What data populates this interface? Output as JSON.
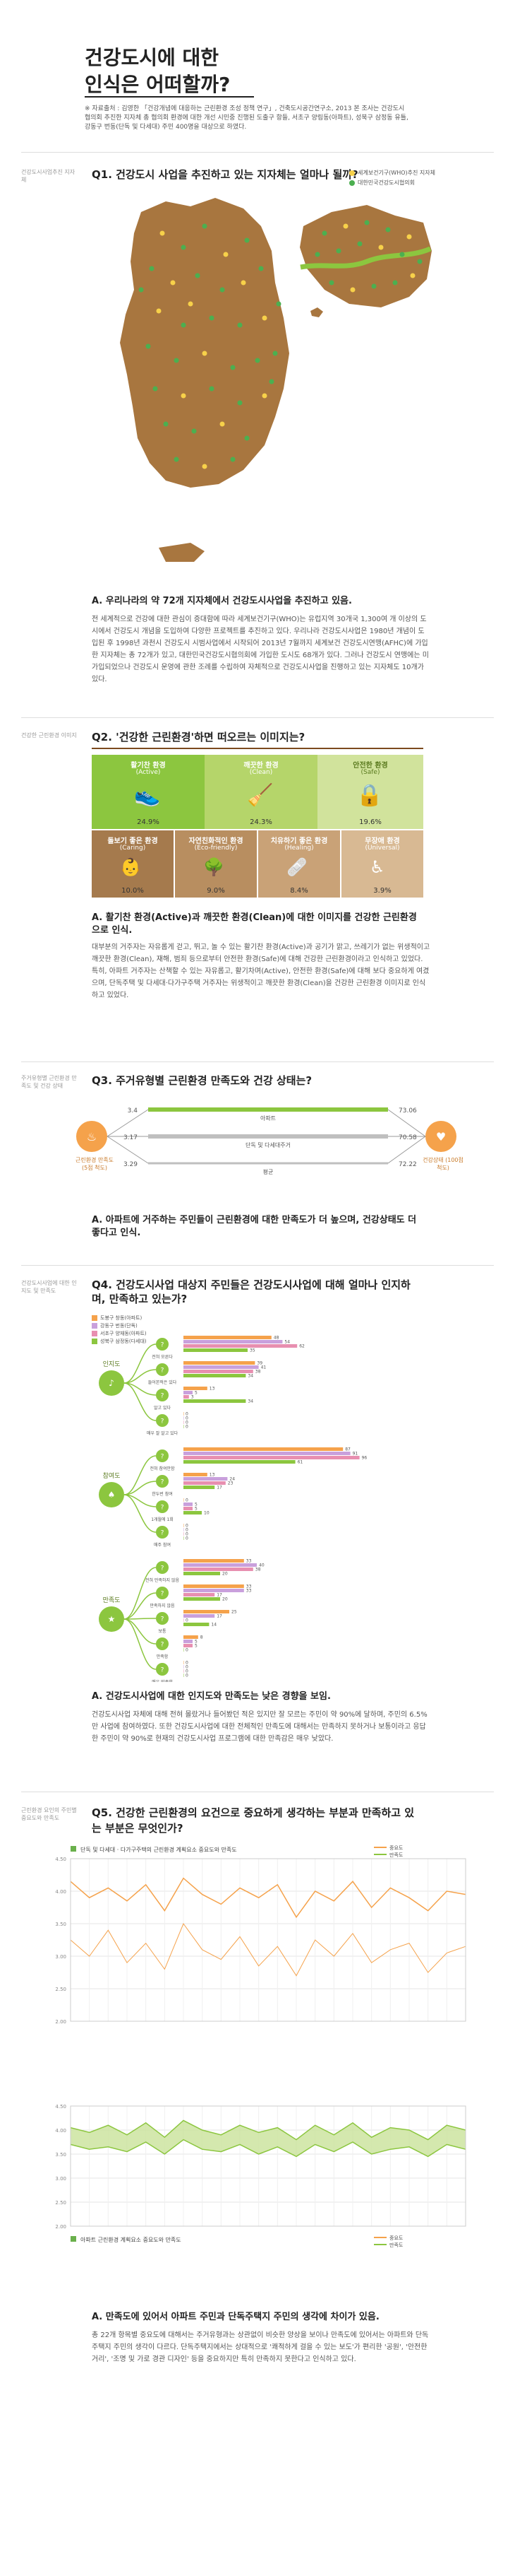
{
  "header": {
    "title_line1": "건강도시에 대한",
    "title_line2": "인식은 어떠할까?",
    "note": "※ 자료출처 : 김영한 「건강개념에 대응하는 근린환경 조성 정책 연구」, 건축도시공간연구소, 2013 본 조사는 건강도시협의회 추진한 지자체 총 협의회 환경에 대한 개선 시민중 진행된 도출구 항들, 서초구 양림동(아파트), 성북구 삼정동 유틀, 강동구 번동(단독 및 다세대) 주민 400명을 대상으로 하였다."
  },
  "q1": {
    "side": "건강도시사업추진 지자체",
    "question": "Q1. 건강도시 사업을 추진하고 있는 지자체는 얼마나 될까?",
    "legend": [
      "세계보건기구(WHO)추진 지자체",
      "대한민국건강도시협의회"
    ],
    "answer_head": "A. 우리나라의 약 72개 지자체에서 건강도시사업을 추진하고 있음.",
    "answer_body": "전 세계적으로 건강에 대한 관심이 증대함에 따라 세계보건기구(WHO)는 유럽지역 30개국 1,300여 개 이상의 도시에서 건강도시 개념을 도입하여 다양한 프로젝트를 추진하고 있다. 우리나라 건강도시사업은 1980년 개념이 도입된 후 1998년 과천시 건강도시 시범사업에서 시작되어 2013년 7월까지 세계보건 건강도시연맹(AFHC)에 가입한 지자체는 총 72개가 있고, 대한민국건강도시협의회에 가입한 도시도 68개가 있다. 그러나 건강도시 연맹에는 미가입되었으나 건강도시 운영에 관한 조례를 수립하여 자체적으로 건강도시사업을 진행하고 있는 지자체도 10개가 있다."
  },
  "q2": {
    "side": "건강한 근린환경 이미지",
    "question": "Q2. '건강한 근린환경'하면 떠오르는 이미지는?",
    "tiles_top": [
      {
        "label": "활기찬 환경",
        "sub": "(Active)",
        "pct": "24.9%",
        "color": "#8cc63f"
      },
      {
        "label": "깨끗한 환경",
        "sub": "(Clean)",
        "pct": "24.3%",
        "color": "#b5d56a"
      },
      {
        "label": "안전한 환경",
        "sub": "(Safe)",
        "pct": "19.6%",
        "color": "#d1e39c"
      }
    ],
    "tiles_bottom": [
      {
        "label": "돌보기 좋은 환경",
        "sub": "(Caring)",
        "pct": "10.0%",
        "color": "#a57a4d"
      },
      {
        "label": "자연친화적인 환경",
        "sub": "(Eco-friendly)",
        "pct": "9.0%",
        "color": "#b88e60"
      },
      {
        "label": "치유하기 좋은 환경",
        "sub": "(Healing)",
        "pct": "8.4%",
        "color": "#c9a277"
      },
      {
        "label": "무장애 환경",
        "sub": "(Universal)",
        "pct": "3.9%",
        "color": "#d8b993"
      }
    ],
    "answer_head": "A. 활기찬 환경(Active)과 깨끗한 환경(Clean)에 대한 이미지를 건강한 근린환경으로 인식.",
    "answer_body": "대부분의 거주자는 자유롭게 걷고, 뛰고, 놀 수 있는 활기찬 환경(Active)과 공기가 맑고, 쓰레기가 없는 위생적이고 깨끗한 환경(Clean), 재해, 범죄 등으로부터 안전한 환경(Safe)에 대해 건강한 근린환경이라고 인식하고 있었다. 특히, 아파트 거주자는 산책할 수 있는 자유롭고, 활기차며(Active), 안전한 환경(Safe)에 대해 보다 중요하게 여겼으며, 단독주택 및 다세대·다가구주택 거주자는 위생적이고 깨끗한 환경(Clean)을 건강한 근린환경 이미지로 인식하고 있었다."
  },
  "q3": {
    "side": "주거유형별 근린환경 만족도 및 건강 상태",
    "question": "Q3. 주거유형별 근린환경 만족도와 건강 상태는?",
    "left_label": "근린환경 만족도 (5점 척도)",
    "right_label": "건강상태 (100점 척도)",
    "rows": [
      {
        "name": "아파트",
        "left": "3.4",
        "right": "73.06"
      },
      {
        "name": "단독 및 다세대주거",
        "left": "3.17",
        "right": "70.58"
      },
      {
        "name": "평균",
        "left": "3.29",
        "right": "72.22"
      }
    ],
    "answer_head": "A. 아파트에 거주하는 주민들이 근린환경에 대한 만족도가 더 높으며, 건강상태도 더 좋다고 인식.",
    "answer_body": ""
  },
  "q4": {
    "side": "건강도시사업에 대한 인지도 및 만족도",
    "question": "Q4. 건강도시사업 대상지 주민들은 건강도시사업에 대해 얼마나 인지하며, 만족하고 있는가?",
    "legend": [
      "도봉구 창동(아파트)",
      "강동구 번동(단독)",
      "서초구 양재동(아파트)",
      "성북구 삼정동(다세대)"
    ],
    "legend_colors": [
      "#f5a24b",
      "#c9a0dc",
      "#e88fb0",
      "#8cc63f"
    ],
    "groups": [
      {
        "name": "인지도",
        "items": [
          {
            "name": "전혀 모른다",
            "values": [
              48,
              54,
              62,
              35
            ]
          },
          {
            "name": "들어본적은 있다",
            "values": [
              39,
              41,
              38,
              34
            ]
          },
          {
            "name": "알고 있다",
            "values": [
              13,
              5,
              3,
              34
            ]
          },
          {
            "name": "매우 잘 알고 있다",
            "values": [
              0,
              0,
              0,
              0
            ]
          }
        ]
      },
      {
        "name": "참여도",
        "items": [
          {
            "name": "전혀 참여안함",
            "values": [
              87,
              91,
              96,
              61
            ]
          },
          {
            "name": "한두번 참여",
            "values": [
              13,
              24,
              23,
              17
            ]
          },
          {
            "name": "1개월에 1회",
            "values": [
              0,
              5,
              5,
              10
            ]
          },
          {
            "name": "매주 참여",
            "values": [
              0,
              0,
              0,
              0
            ]
          }
        ]
      },
      {
        "name": "만족도",
        "items": [
          {
            "name": "전혀 만족하지 않음",
            "values": [
              33,
              40,
              38,
              20
            ]
          },
          {
            "name": "만족하지 않음",
            "values": [
              33,
              33,
              17,
              20
            ]
          },
          {
            "name": "보통",
            "values": [
              25,
              17,
              0,
              14
            ]
          },
          {
            "name": "만족함",
            "values": [
              8,
              5,
              5,
              0
            ]
          },
          {
            "name": "매우 만족함",
            "values": [
              0,
              0,
              0,
              0
            ]
          }
        ]
      }
    ],
    "answer_head": "A. 건강도시사업에 대한 인지도와 만족도는 낮은 경향을 보임.",
    "answer_body": "건강도시사업 자체에 대해 전혀 몰랐거나 들어봤던 적은 있지만 잘 모르는 주민이 약 90%에 달하며, 주민의 6.5%만 사업에 참여하였다. 또한 건강도시사업에 대한 전체적인 만족도에 대해서는 만족하지 못하거나 보통이라고 응답한 주민이 약 90%로 현재의 건강도시사업 프로그램에 대한 만족감은 매우 낮았다."
  },
  "q5": {
    "side": "근린환경 요인의 주민별 중요도와 만족도",
    "question": "Q5. 건강한 근린환경의 요건으로 중요하게 생각하는 부분과 만족하고 있는 부분은 무엇인가?",
    "chart1_title": "단독 및 다세대 · 다가구주택의 근린환경 계획요소 중요도와 만족도",
    "chart2_title": "아파트 근린환경 계획요소 중요도와 만족도",
    "legend": [
      "중요도",
      "만족도"
    ],
    "answer_head": "A. 만족도에 있어서 아파트 주민과 단독주택지 주민의 생각에 차이가 있음.",
    "answer_body": "총 22개 항목별 중요도에 대해서는 주거유형과는 상관없이 비슷한 양상을 보이나 만족도에 있어서는 아파트와 단독주택지 주민의 생각이 다르다. 단독주택지에서는 상대적으로 '쾌적하게 걸을 수 있는 보도'가 편리한 '공원', '안전한 거리', '조명 및 가로 경관 디자인' 등을 중요하지만 특히 만족하지 못한다고 인식하고 있다."
  },
  "chart_data": [
    {
      "type": "line",
      "title": "단독 및 다세대 · 다가구주택의 근린환경 계획요소 중요도와 만족도",
      "ylim": [
        2.0,
        4.5
      ],
      "ticks": [
        "4.50",
        "4.00",
        "3.50",
        "3.00",
        "2.50",
        "2.00"
      ],
      "series": [
        {
          "name": "중요도",
          "values": [
            4.15,
            3.9,
            4.05,
            3.85,
            4.1,
            3.7,
            4.2,
            3.95,
            3.8,
            4.05,
            3.9,
            4.1,
            3.6,
            4.0,
            3.85,
            4.15,
            3.75,
            4.05,
            3.9,
            3.7,
            4.0,
            3.95
          ]
        },
        {
          "name": "만족도",
          "values": [
            3.25,
            3.0,
            3.4,
            2.9,
            3.2,
            2.8,
            3.5,
            3.1,
            2.95,
            3.3,
            2.85,
            3.15,
            2.7,
            3.25,
            3.0,
            3.35,
            2.9,
            3.1,
            3.2,
            2.75,
            3.05,
            3.15
          ]
        }
      ]
    },
    {
      "type": "area",
      "title": "아파트 근린환경 계획요소 중요도와 만족도",
      "ylim": [
        2.0,
        4.5
      ],
      "ticks": [
        "4.50",
        "4.00",
        "3.50",
        "3.00",
        "2.50",
        "2.00"
      ],
      "series": [
        {
          "name": "중요도",
          "values": [
            4.05,
            3.95,
            4.1,
            3.9,
            4.15,
            3.85,
            4.2,
            4.0,
            3.9,
            4.1,
            3.95,
            4.05,
            3.8,
            4.1,
            3.9,
            4.15,
            3.85,
            4.05,
            4.0,
            3.8,
            4.1,
            4.0
          ]
        },
        {
          "name": "만족도",
          "values": [
            3.7,
            3.6,
            3.65,
            3.55,
            3.75,
            3.5,
            3.8,
            3.6,
            3.55,
            3.7,
            3.5,
            3.65,
            3.45,
            3.7,
            3.55,
            3.75,
            3.5,
            3.6,
            3.65,
            3.45,
            3.7,
            3.6
          ]
        }
      ]
    }
  ]
}
